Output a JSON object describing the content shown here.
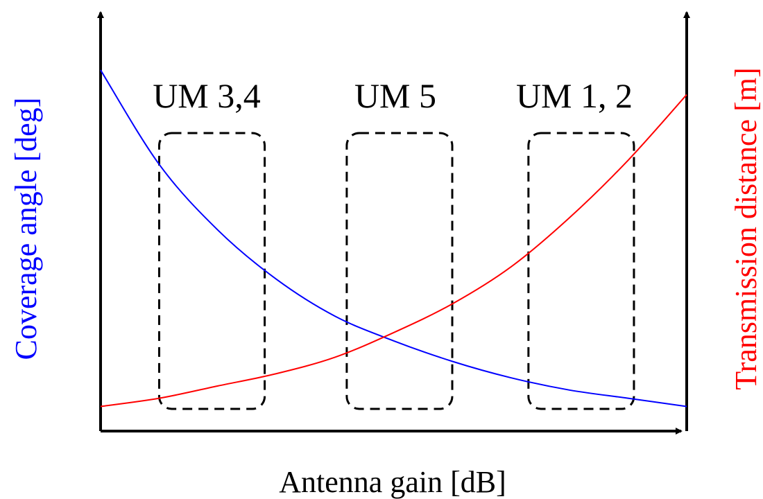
{
  "chart_data": {
    "type": "line",
    "title": "",
    "xlabel": "Antenna gain [dB]",
    "ylabel_left": "Coverage angle [deg]",
    "ylabel_right": "Transmission distance [m]",
    "xlim": [
      0,
      1
    ],
    "ylim": [
      0,
      1
    ],
    "grid": false,
    "legend": "none",
    "series": [
      {
        "axis": "left",
        "color": "#0000ff",
        "x": [
          0.0,
          0.1,
          0.2,
          0.3,
          0.4,
          0.5,
          0.6,
          0.7,
          0.8,
          0.9,
          1.0
        ],
        "y": [
          0.88,
          0.65,
          0.49,
          0.37,
          0.28,
          0.22,
          0.17,
          0.13,
          0.1,
          0.08,
          0.06
        ]
      },
      {
        "axis": "right",
        "color": "#ff0000",
        "x": [
          0.0,
          0.1,
          0.2,
          0.3,
          0.4,
          0.5,
          0.6,
          0.7,
          0.8,
          0.9,
          1.0
        ],
        "y": [
          0.06,
          0.08,
          0.11,
          0.14,
          0.18,
          0.24,
          0.31,
          0.4,
          0.52,
          0.66,
          0.82
        ]
      }
    ],
    "regions": [
      {
        "label": "UM 3,4",
        "x_range": [
          0.1,
          0.28
        ]
      },
      {
        "label": "UM 5",
        "x_range": [
          0.42,
          0.6
        ]
      },
      {
        "label": "UM 1, 2",
        "x_range": [
          0.73,
          0.91
        ]
      }
    ]
  },
  "colors": {
    "left_axis_title": "#0000ff",
    "right_axis_title": "#ff0000",
    "axes": "#000000"
  }
}
